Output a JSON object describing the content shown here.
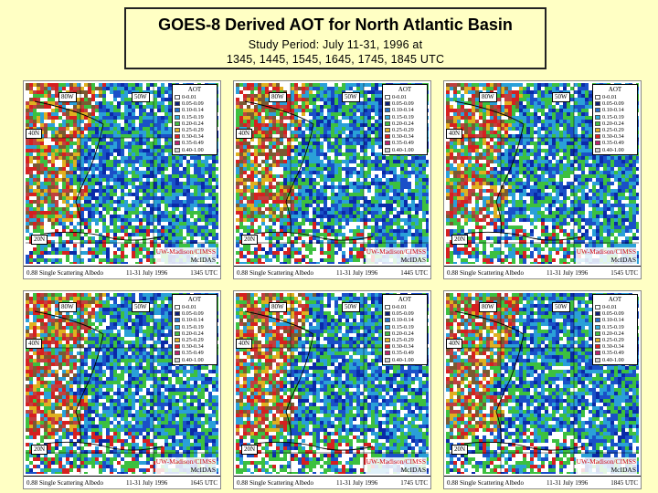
{
  "title": {
    "line1": "GOES-8 Derived AOT for North Atlantic Basin",
    "line2": "Study Period:  July 11-31, 1996  at",
    "line3": "1345, 1445, 1545, 1645, 1745, 1845 UTC"
  },
  "colors": {
    "background": "#ffffc4",
    "ocean_low": "#0a2aa8",
    "ocean_mid": "#2aa0d8",
    "ocean_green": "#3cc040",
    "land_brown": "#7a5a32",
    "high_aot": "#d62020"
  },
  "legend": {
    "header": "AOT",
    "items": [
      {
        "label": "0-0.01",
        "color": "#ffffff"
      },
      {
        "label": "0.05-0.09",
        "color": "#10207a"
      },
      {
        "label": "0.10-0.14",
        "color": "#2070d0"
      },
      {
        "label": "0.15-0.19",
        "color": "#30b0e0"
      },
      {
        "label": "0.20-0.24",
        "color": "#40c040"
      },
      {
        "label": "0.25-0.29",
        "color": "#e0b020"
      },
      {
        "label": "0.30-0.34",
        "color": "#e02020"
      },
      {
        "label": "0.35-0.49",
        "color": "#c02070"
      },
      {
        "label": "0.40-1.00",
        "color": "#d0d0d0"
      }
    ]
  },
  "map_labels": {
    "lon80": "80W",
    "lon50": "50W",
    "lat40": "40N",
    "lat20": "20N",
    "credit1": "UW-Madison/CIMSS",
    "credit2": "McIDAS"
  },
  "panels": [
    {
      "albedo": "0.88 Single Scattering Albedo",
      "date": "11-31 July 1996",
      "time": "1345 UTC"
    },
    {
      "albedo": "0.88 Single Scattering Albedo",
      "date": "11-31 July 1996",
      "time": "1445 UTC"
    },
    {
      "albedo": "0.88 Single Scattering Albedo",
      "date": "11-31 July 1996",
      "time": "1545 UTC"
    },
    {
      "albedo": "0.88 Single Scattering Albedo",
      "date": "11-31 July 1996",
      "time": "1645 UTC"
    },
    {
      "albedo": "0.88 Single Scattering Albedo",
      "date": "11-31 July 1996",
      "time": "1745 UTC"
    },
    {
      "albedo": "0.88 Single Scattering Albedo",
      "date": "11-31 July 1996",
      "time": "1845 UTC"
    }
  ]
}
